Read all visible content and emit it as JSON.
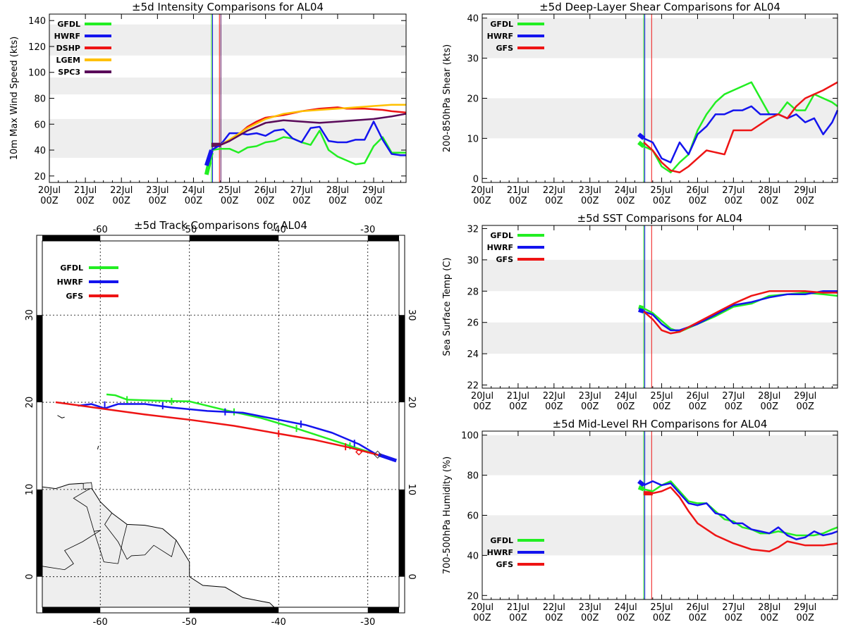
{
  "colors": {
    "GFDL": "#22ee22",
    "HWRF": "#1414ee",
    "DSHP": "#ee1414",
    "LGEM": "#ffc000",
    "SPC3": "#5a0a5a",
    "GFS": "#ee1414",
    "band": "#eeeeee",
    "land": "#eeeeee"
  },
  "time_axis": {
    "ticks": [
      0,
      1,
      2,
      3,
      4,
      5,
      6,
      7,
      8,
      9
    ],
    "labels_day": [
      "20Jul",
      "21Jul",
      "22Jul",
      "23Jul",
      "24Jul",
      "25Jul",
      "26Jul",
      "27Jul",
      "28Jul",
      "29Jul"
    ],
    "labels_hour": [
      "00Z",
      "00Z",
      "00Z",
      "00Z",
      "00Z",
      "00Z",
      "00Z",
      "00Z",
      "00Z",
      "00Z"
    ],
    "xlim": [
      0,
      9.9
    ],
    "vlines": [
      {
        "x": 4.5,
        "color": "#22cc22"
      },
      {
        "x": 4.53,
        "color": "#1414ee"
      },
      {
        "x": 4.72,
        "color": "#ee1414"
      },
      {
        "x": 4.76,
        "color": "#5a0a5a"
      }
    ]
  },
  "chart_data": [
    {
      "id": "intensity",
      "type": "line",
      "title": "±5d Intensity Comparisons for AL04",
      "ylabel": "10m Max Wind Speed (kts)",
      "ylim": [
        15,
        145
      ],
      "yticks": [
        20,
        40,
        60,
        80,
        100,
        120,
        140
      ],
      "bands": [
        [
          34,
          64
        ],
        [
          83,
          96
        ],
        [
          113,
          137
        ]
      ],
      "legend": [
        "GFDL",
        "HWRF",
        "DSHP",
        "LGEM",
        "SPC3"
      ],
      "series": [
        {
          "name": "GFDL",
          "x": [
            4.5,
            4.75,
            5.0,
            5.25,
            5.5,
            5.75,
            6.0,
            6.25,
            6.5,
            6.75,
            7.0,
            7.25,
            7.5,
            7.75,
            8.0,
            8.25,
            8.5,
            8.75,
            9.0,
            9.25,
            9.5,
            9.75,
            9.9
          ],
          "y": [
            40,
            41,
            41,
            38,
            42,
            43,
            46,
            47,
            50,
            49,
            46,
            44,
            55,
            40,
            35,
            32,
            29,
            30,
            43,
            50,
            38,
            38,
            38
          ]
        },
        {
          "name": "HWRF",
          "x": [
            4.5,
            4.75,
            5.0,
            5.25,
            5.5,
            5.75,
            6.0,
            6.25,
            6.5,
            6.75,
            7.0,
            7.25,
            7.5,
            7.75,
            8.0,
            8.25,
            8.5,
            8.75,
            9.0,
            9.25,
            9.5,
            9.75,
            9.9
          ],
          "y": [
            40,
            44,
            53,
            53,
            52,
            53,
            51,
            55,
            56,
            49,
            46,
            57,
            58,
            47,
            46,
            46,
            48,
            48,
            62,
            48,
            37,
            36,
            36
          ]
        },
        {
          "name": "DSHP",
          "x": [
            4.5,
            4.75,
            5.0,
            5.25,
            5.5,
            5.75,
            6.0,
            6.5,
            7.0,
            7.5,
            8.0,
            8.25,
            8.75,
            9.25,
            9.5,
            9.9
          ],
          "y": [
            44,
            44,
            47,
            52,
            58,
            62,
            65,
            67,
            70,
            72,
            73,
            72,
            72,
            71,
            70,
            69
          ]
        },
        {
          "name": "LGEM",
          "x": [
            4.5,
            4.75,
            5.0,
            5.5,
            6.0,
            6.5,
            7.0,
            7.5,
            8.0,
            8.5,
            9.0,
            9.5,
            9.9
          ],
          "y": [
            44,
            44,
            48,
            57,
            64,
            68,
            70,
            71,
            72,
            73,
            74,
            75,
            75
          ]
        },
        {
          "name": "SPC3",
          "x": [
            4.5,
            4.75,
            5.0,
            5.5,
            6.0,
            6.5,
            7.0,
            7.5,
            8.0,
            8.5,
            9.0,
            9.5,
            9.9
          ],
          "y": [
            44,
            44,
            47,
            55,
            61,
            63,
            62,
            61,
            62,
            63,
            64,
            66,
            68
          ]
        }
      ],
      "init_segments": [
        {
          "color": "#22ee22",
          "x": [
            4.36,
            4.5
          ],
          "y": [
            21,
            38
          ]
        },
        {
          "color": "#1414ee",
          "x": [
            4.36,
            4.5
          ],
          "y": [
            28,
            40
          ]
        },
        {
          "color": "#5a0a5a",
          "x": [
            4.5,
            4.75
          ],
          "y": [
            44,
            44
          ]
        }
      ]
    },
    {
      "id": "shear",
      "type": "line",
      "title": "±5d Deep-Layer Shear Comparisons for AL04",
      "ylabel": "200-850hPa Shear (kts)",
      "ylim": [
        -1,
        41
      ],
      "yticks": [
        0,
        10,
        20,
        30,
        40
      ],
      "bands": [
        [
          10,
          20
        ],
        [
          30,
          40
        ]
      ],
      "legend": [
        "GFDL",
        "HWRF",
        "GFS"
      ],
      "series": [
        {
          "name": "GFDL",
          "x": [
            4.5,
            4.75,
            5.0,
            5.25,
            5.5,
            5.75,
            6.0,
            6.25,
            6.5,
            6.75,
            7.0,
            7.5,
            7.75,
            8.0,
            8.25,
            8.5,
            8.75,
            9.0,
            9.25,
            9.5,
            9.75,
            9.9
          ],
          "y": [
            8,
            7,
            3,
            1.5,
            4,
            6,
            12,
            16,
            19,
            21,
            22,
            24,
            20,
            16,
            16,
            19,
            17,
            17,
            21,
            20,
            19,
            18
          ]
        },
        {
          "name": "HWRF",
          "x": [
            4.5,
            4.75,
            5.0,
            5.25,
            5.5,
            5.75,
            6.0,
            6.25,
            6.5,
            6.75,
            7.0,
            7.25,
            7.5,
            7.75,
            8.0,
            8.25,
            8.5,
            8.75,
            9.0,
            9.25,
            9.5,
            9.75,
            9.9
          ],
          "y": [
            10,
            9,
            5,
            4,
            9,
            6,
            11,
            13,
            16,
            16,
            17,
            17,
            18,
            16,
            16,
            16,
            15,
            16,
            14,
            15,
            11,
            14,
            17
          ]
        },
        {
          "name": "GFS",
          "x": [
            4.5,
            4.75,
            5.0,
            5.25,
            5.5,
            5.75,
            6.0,
            6.25,
            6.5,
            6.75,
            7.0,
            7.5,
            8.0,
            8.25,
            8.5,
            8.75,
            9.0,
            9.5,
            9.9
          ],
          "y": [
            9,
            7,
            4,
            2,
            1.5,
            3,
            5,
            7,
            6.5,
            6,
            12,
            12,
            15,
            16,
            15,
            18,
            20,
            22,
            24
          ]
        }
      ],
      "init_segments": [
        {
          "color": "#22ee22",
          "x": [
            4.36,
            4.5
          ],
          "y": [
            9,
            8
          ]
        },
        {
          "color": "#1414ee",
          "x": [
            4.36,
            4.5
          ],
          "y": [
            11,
            10
          ]
        }
      ]
    },
    {
      "id": "sst",
      "type": "line",
      "title": "±5d SST Comparisons for AL04",
      "ylabel": "Sea Surface Temp (C)",
      "ylim": [
        21.8,
        32.2
      ],
      "yticks": [
        22,
        24,
        26,
        28,
        30,
        32
      ],
      "bands": [
        [
          24,
          26
        ],
        [
          28,
          30
        ]
      ],
      "legend": [
        "GFDL",
        "HWRF",
        "GFS"
      ],
      "series": [
        {
          "name": "GFDL",
          "x": [
            4.5,
            4.75,
            5.0,
            5.25,
            5.5,
            6.0,
            6.5,
            7.0,
            7.5,
            8.0,
            8.5,
            9.0,
            9.5,
            9.9
          ],
          "y": [
            26.9,
            26.6,
            26.1,
            25.6,
            25.4,
            25.9,
            26.4,
            27.0,
            27.2,
            27.7,
            27.8,
            27.9,
            27.8,
            27.7
          ]
        },
        {
          "name": "HWRF",
          "x": [
            4.5,
            4.75,
            5.0,
            5.25,
            5.5,
            6.0,
            6.5,
            7.0,
            7.5,
            8.0,
            8.5,
            9.0,
            9.5,
            9.9
          ],
          "y": [
            26.7,
            26.5,
            25.9,
            25.5,
            25.5,
            25.9,
            26.5,
            27.1,
            27.3,
            27.6,
            27.8,
            27.8,
            28.0,
            28.0
          ]
        },
        {
          "name": "GFS",
          "x": [
            4.5,
            4.75,
            5.0,
            5.25,
            5.5,
            6.0,
            6.5,
            7.0,
            7.5,
            8.0,
            8.5,
            9.0,
            9.5,
            9.9
          ],
          "y": [
            26.7,
            26.2,
            25.5,
            25.3,
            25.4,
            26.0,
            26.6,
            27.2,
            27.7,
            28.0,
            28.0,
            28.0,
            27.9,
            27.9
          ]
        }
      ],
      "init_segments": [
        {
          "color": "#22ee22",
          "x": [
            4.36,
            4.5
          ],
          "y": [
            27.0,
            26.9
          ]
        },
        {
          "color": "#1414ee",
          "x": [
            4.36,
            4.5
          ],
          "y": [
            26.8,
            26.7
          ]
        }
      ]
    },
    {
      "id": "rh",
      "type": "line",
      "title": "±5d Mid-Level RH Comparisons for AL04",
      "ylabel": "700-500hPa Humidity (%)",
      "ylim": [
        18,
        102
      ],
      "yticks": [
        20,
        40,
        60,
        80,
        100
      ],
      "bands": [
        [
          40,
          60
        ],
        [
          80,
          100
        ]
      ],
      "legend": [
        "GFDL",
        "HWRF",
        "GFS"
      ],
      "series": [
        {
          "name": "GFDL",
          "x": [
            4.5,
            4.75,
            5.0,
            5.25,
            5.5,
            5.75,
            6.0,
            6.25,
            6.5,
            6.75,
            7.0,
            7.25,
            7.5,
            7.75,
            8.0,
            8.25,
            8.5,
            8.75,
            9.0,
            9.25,
            9.5,
            9.75,
            9.9
          ],
          "y": [
            73,
            72,
            75,
            77,
            72,
            67,
            66,
            66,
            62,
            58,
            57,
            54,
            53,
            51,
            51,
            52,
            51,
            50,
            50,
            50,
            51,
            53,
            54
          ]
        },
        {
          "name": "HWRF",
          "x": [
            4.5,
            4.75,
            5.0,
            5.25,
            5.5,
            5.75,
            6.0,
            6.25,
            6.5,
            6.75,
            7.0,
            7.25,
            7.5,
            7.75,
            8.0,
            8.25,
            8.5,
            8.75,
            9.0,
            9.25,
            9.5,
            9.75,
            9.9
          ],
          "y": [
            75,
            77,
            75,
            76,
            71,
            66,
            65,
            66,
            61,
            60,
            56,
            56,
            53,
            52,
            51,
            54,
            50,
            48,
            49,
            52,
            50,
            51,
            52
          ]
        },
        {
          "name": "GFS",
          "x": [
            4.5,
            4.75,
            5.0,
            5.25,
            5.5,
            5.75,
            6.0,
            6.5,
            7.0,
            7.5,
            8.0,
            8.25,
            8.5,
            8.75,
            9.0,
            9.5,
            9.9
          ],
          "y": [
            71,
            71,
            72,
            74,
            69,
            62,
            56,
            50,
            46,
            43,
            42,
            44,
            47,
            46,
            45,
            45,
            46
          ]
        }
      ],
      "init_segments": [
        {
          "color": "#22ee22",
          "x": [
            4.36,
            4.5
          ],
          "y": [
            74,
            73
          ]
        },
        {
          "color": "#1414ee",
          "x": [
            4.36,
            4.5
          ],
          "y": [
            77,
            75
          ]
        },
        {
          "color": "#ee1414",
          "x": [
            4.5,
            4.75
          ],
          "y": [
            71,
            71
          ]
        }
      ]
    },
    {
      "id": "track",
      "type": "line",
      "title": "±5d Track Comparisons for AL04",
      "lon_range": [
        -66.5,
        -26.5
      ],
      "lat_range": [
        -3.5,
        38.5
      ],
      "lon_ticks": [
        -60,
        -50,
        -40,
        -30
      ],
      "lat_ticks": [
        0,
        10,
        20,
        30
      ],
      "lon_labels": [
        "-60",
        "-50",
        "-40",
        "-30"
      ],
      "lat_labels": [
        "0",
        "10",
        "20",
        "30"
      ],
      "legend": [
        "GFDL",
        "HWRF",
        "GFS"
      ],
      "series": [
        {
          "name": "GFDL",
          "lon": [
            -27.5,
            -29,
            -32,
            -35,
            -38,
            -42,
            -46,
            -50,
            -54,
            -57,
            -58.3,
            -59.3
          ],
          "lat": [
            13.5,
            14,
            15,
            16,
            17,
            18.2,
            19.1,
            20.1,
            20.2,
            20.3,
            20.8,
            20.9
          ],
          "marks_lon": [
            -32,
            -38,
            -45,
            -52,
            -57
          ],
          "marks_lat": [
            15,
            17,
            18.9,
            20.1,
            20.3
          ]
        },
        {
          "name": "HWRF",
          "lon": [
            -27.5,
            -29,
            -31,
            -34,
            -37,
            -40,
            -44,
            -48,
            -52,
            -55,
            -58,
            -59.5,
            -61,
            -62.5
          ],
          "lat": [
            13.5,
            14,
            15.2,
            16.5,
            17.4,
            18,
            18.8,
            19,
            19.4,
            19.8,
            19.8,
            19.3,
            19.8,
            19.6
          ],
          "marks_lon": [
            -31.5,
            -37.5,
            -46,
            -53,
            -59.5
          ],
          "marks_lat": [
            15.3,
            17.5,
            18.9,
            19.6,
            19.7
          ]
        },
        {
          "name": "GFS",
          "lon": [
            -27.5,
            -29,
            -32,
            -36,
            -40,
            -45,
            -50,
            -55,
            -60,
            -65
          ],
          "lat": [
            13.5,
            14,
            14.8,
            15.7,
            16.4,
            17.3,
            18.0,
            18.6,
            19.3,
            20.0
          ],
          "marks_lon": [
            -32.5,
            -40
          ],
          "marks_lat": [
            14.9,
            16.4
          ]
        }
      ]
    }
  ]
}
